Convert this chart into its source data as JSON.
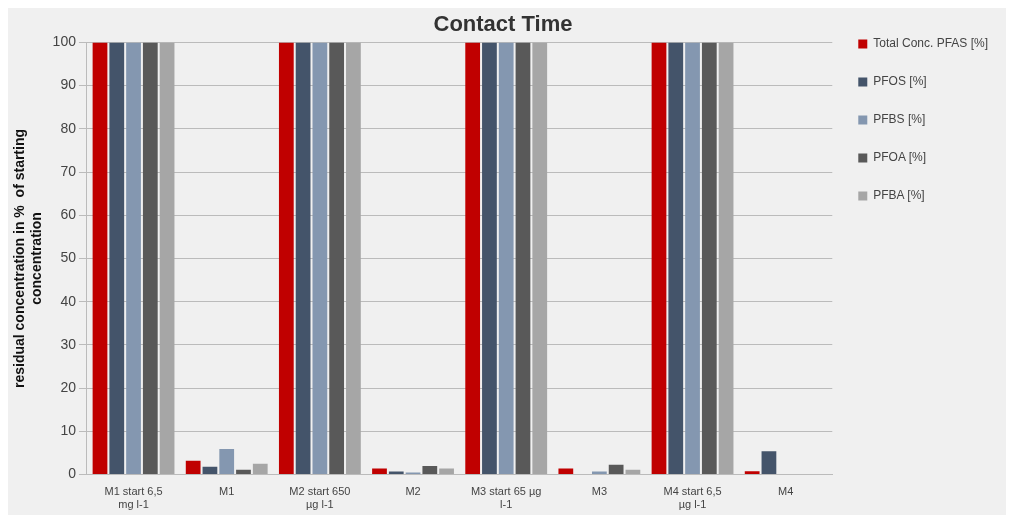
{
  "chart_data": {
    "type": "bar",
    "title": "Contact Time",
    "ylabel": "residual concentration in %  of starting concentration",
    "categories": [
      "M1 start 6,5 mg l-1",
      "M1",
      "M2 start 650 µg l-1",
      "M2",
      "M3 start 65 µg l-1",
      "M3",
      "M4 start 6,5 µg l-1",
      "M4"
    ],
    "series": [
      {
        "name": "Total Conc. PFAS [%]",
        "color": "#c00000",
        "values": [
          100,
          3.2,
          100,
          1.4,
          100,
          1.4,
          100,
          0.8
        ]
      },
      {
        "name": "PFOS [%]",
        "color": "#44546a",
        "values": [
          100,
          1.8,
          100,
          0.7,
          100,
          0,
          100,
          5.4
        ]
      },
      {
        "name": "PFBS [%]",
        "color": "#8497b0",
        "values": [
          100,
          5.9,
          100,
          0.5,
          100,
          0.7,
          100,
          0
        ]
      },
      {
        "name": "PFOA [%]",
        "color": "#595959",
        "values": [
          100,
          1.1,
          100,
          2,
          100,
          2.3,
          100,
          0
        ]
      },
      {
        "name": "PFBA [%]",
        "color": "#a6a6a6",
        "values": [
          100,
          2.5,
          100,
          1.4,
          100,
          1.1,
          100,
          0
        ]
      }
    ],
    "ylim": [
      0,
      100
    ],
    "yticks": [
      0,
      10,
      20,
      30,
      40,
      50,
      60,
      70,
      80,
      90,
      100
    ],
    "grid": "y",
    "legend": "right"
  }
}
